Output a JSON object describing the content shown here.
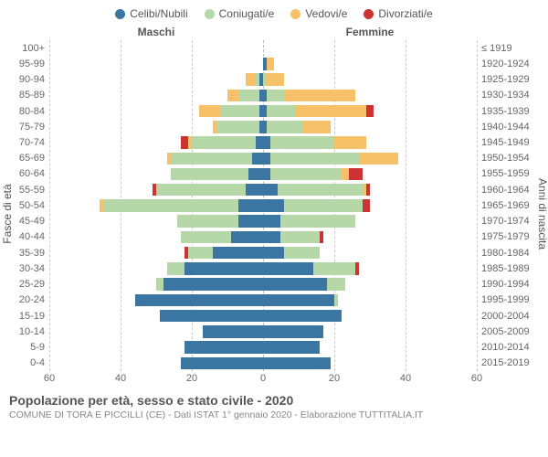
{
  "legend": [
    {
      "label": "Celibi/Nubili",
      "color": "#3b76a3"
    },
    {
      "label": "Coniugati/e",
      "color": "#b6d7a8"
    },
    {
      "label": "Vedovi/e",
      "color": "#f7c16a"
    },
    {
      "label": "Divorziati/e",
      "color": "#cc3333"
    }
  ],
  "headers": {
    "left": "Maschi",
    "right": "Femmine"
  },
  "axisTitles": {
    "left": "Fasce di età",
    "right": "Anni di nascita"
  },
  "xAxis": {
    "max": 60,
    "ticks": [
      60,
      40,
      20,
      0,
      20,
      40,
      60
    ]
  },
  "rows": [
    {
      "age": "100+",
      "birth": "≤ 1919",
      "m": [
        0,
        0,
        0,
        0
      ],
      "f": [
        0,
        0,
        0,
        0
      ]
    },
    {
      "age": "95-99",
      "birth": "1920-1924",
      "m": [
        0,
        0,
        0,
        0
      ],
      "f": [
        1,
        0,
        2,
        0
      ]
    },
    {
      "age": "90-94",
      "birth": "1925-1929",
      "m": [
        1,
        1,
        3,
        0
      ],
      "f": [
        0,
        1,
        5,
        0
      ]
    },
    {
      "age": "85-89",
      "birth": "1930-1934",
      "m": [
        1,
        6,
        3,
        0
      ],
      "f": [
        1,
        5,
        20,
        0
      ]
    },
    {
      "age": "80-84",
      "birth": "1935-1939",
      "m": [
        1,
        11,
        6,
        0
      ],
      "f": [
        1,
        8,
        20,
        2
      ]
    },
    {
      "age": "75-79",
      "birth": "1940-1944",
      "m": [
        1,
        12,
        1,
        0
      ],
      "f": [
        1,
        10,
        8,
        0
      ]
    },
    {
      "age": "70-74",
      "birth": "1945-1949",
      "m": [
        2,
        18,
        1,
        2
      ],
      "f": [
        2,
        18,
        9,
        0
      ]
    },
    {
      "age": "65-69",
      "birth": "1950-1954",
      "m": [
        3,
        23,
        1,
        0
      ],
      "f": [
        2,
        25,
        11,
        0
      ]
    },
    {
      "age": "60-64",
      "birth": "1955-1959",
      "m": [
        4,
        22,
        0,
        0
      ],
      "f": [
        2,
        20,
        2,
        4
      ]
    },
    {
      "age": "55-59",
      "birth": "1960-1964",
      "m": [
        5,
        25,
        0,
        1
      ],
      "f": [
        4,
        24,
        1,
        1
      ]
    },
    {
      "age": "50-54",
      "birth": "1965-1969",
      "m": [
        7,
        38,
        1,
        0
      ],
      "f": [
        6,
        22,
        0,
        2
      ]
    },
    {
      "age": "45-49",
      "birth": "1970-1974",
      "m": [
        7,
        17,
        0,
        0
      ],
      "f": [
        5,
        21,
        0,
        0
      ]
    },
    {
      "age": "40-44",
      "birth": "1975-1979",
      "m": [
        9,
        14,
        0,
        0
      ],
      "f": [
        5,
        11,
        0,
        1
      ]
    },
    {
      "age": "35-39",
      "birth": "1980-1984",
      "m": [
        14,
        7,
        0,
        1
      ],
      "f": [
        6,
        10,
        0,
        0
      ]
    },
    {
      "age": "30-34",
      "birth": "1985-1989",
      "m": [
        22,
        5,
        0,
        0
      ],
      "f": [
        14,
        12,
        0,
        1
      ]
    },
    {
      "age": "25-29",
      "birth": "1990-1994",
      "m": [
        28,
        2,
        0,
        0
      ],
      "f": [
        18,
        5,
        0,
        0
      ]
    },
    {
      "age": "20-24",
      "birth": "1995-1999",
      "m": [
        36,
        0,
        0,
        0
      ],
      "f": [
        20,
        1,
        0,
        0
      ]
    },
    {
      "age": "15-19",
      "birth": "2000-2004",
      "m": [
        29,
        0,
        0,
        0
      ],
      "f": [
        22,
        0,
        0,
        0
      ]
    },
    {
      "age": "10-14",
      "birth": "2005-2009",
      "m": [
        17,
        0,
        0,
        0
      ],
      "f": [
        17,
        0,
        0,
        0
      ]
    },
    {
      "age": "5-9",
      "birth": "2010-2014",
      "m": [
        22,
        0,
        0,
        0
      ],
      "f": [
        16,
        0,
        0,
        0
      ]
    },
    {
      "age": "0-4",
      "birth": "2015-2019",
      "m": [
        23,
        0,
        0,
        0
      ],
      "f": [
        19,
        0,
        0,
        0
      ]
    }
  ],
  "footer": {
    "title": "Popolazione per età, sesso e stato civile - 2020",
    "sub": "COMUNE DI TORA E PICCILLI (CE) - Dati ISTAT 1° gennaio 2020 - Elaborazione TUTTITALIA.IT"
  },
  "styling": {
    "background": "#ffffff",
    "grid_color": "#cccccc",
    "text_color": "#666666",
    "tick_fontsize": 11,
    "title_fontsize": 14
  }
}
